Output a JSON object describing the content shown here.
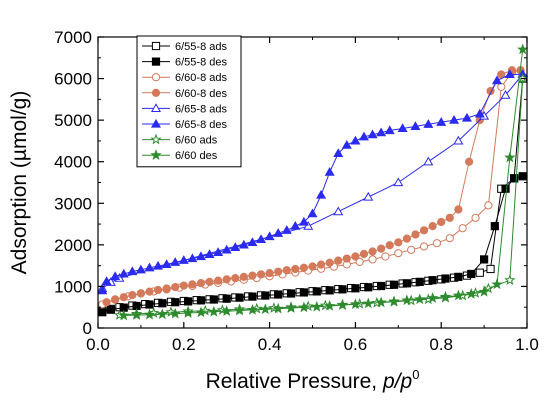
{
  "chart_data": {
    "type": "line",
    "xlabel": "Relative Pressure, p/p",
    "xlabel_superscript": "0",
    "ylabel": "Adsorption (µmol/g)",
    "xlim": [
      0.0,
      1.0
    ],
    "ylim": [
      0,
      7000
    ],
    "x_ticks": [
      "0.0",
      "0.2",
      "0.4",
      "0.6",
      "0.8",
      "1.0"
    ],
    "y_ticks": [
      "0",
      "1000",
      "2000",
      "3000",
      "4000",
      "5000",
      "6000",
      "7000"
    ],
    "grid": false,
    "legend_position": "top-left",
    "series": [
      {
        "name": "6/55-8 ads",
        "color": "#000000",
        "marker": "square",
        "filled": false,
        "points": [
          [
            0.01,
            410
          ],
          [
            0.03,
            460
          ],
          [
            0.05,
            500
          ],
          [
            0.08,
            540
          ],
          [
            0.11,
            575
          ],
          [
            0.14,
            605
          ],
          [
            0.17,
            630
          ],
          [
            0.2,
            650
          ],
          [
            0.23,
            670
          ],
          [
            0.26,
            690
          ],
          [
            0.29,
            715
          ],
          [
            0.32,
            735
          ],
          [
            0.35,
            760
          ],
          [
            0.38,
            785
          ],
          [
            0.41,
            810
          ],
          [
            0.44,
            835
          ],
          [
            0.47,
            860
          ],
          [
            0.5,
            885
          ],
          [
            0.53,
            910
          ],
          [
            0.56,
            935
          ],
          [
            0.59,
            960
          ],
          [
            0.62,
            985
          ],
          [
            0.65,
            1010
          ],
          [
            0.68,
            1040
          ],
          [
            0.71,
            1070
          ],
          [
            0.74,
            1100
          ],
          [
            0.77,
            1135
          ],
          [
            0.8,
            1170
          ],
          [
            0.83,
            1210
          ],
          [
            0.86,
            1260
          ],
          [
            0.89,
            1330
          ],
          [
            0.915,
            1420
          ],
          [
            0.94,
            3350
          ],
          [
            0.97,
            3600
          ],
          [
            0.99,
            6000
          ]
        ]
      },
      {
        "name": "6/55-8 des",
        "color": "#000000",
        "marker": "square",
        "filled": true,
        "points": [
          [
            0.99,
            3650
          ],
          [
            0.97,
            3600
          ],
          [
            0.95,
            3350
          ],
          [
            0.925,
            2450
          ],
          [
            0.9,
            1650
          ],
          [
            0.87,
            1300
          ],
          [
            0.84,
            1230
          ],
          [
            0.81,
            1190
          ],
          [
            0.78,
            1150
          ],
          [
            0.75,
            1110
          ],
          [
            0.72,
            1075
          ],
          [
            0.69,
            1040
          ],
          [
            0.66,
            1010
          ],
          [
            0.63,
            980
          ],
          [
            0.6,
            955
          ],
          [
            0.57,
            930
          ],
          [
            0.54,
            905
          ],
          [
            0.51,
            880
          ],
          [
            0.48,
            855
          ],
          [
            0.45,
            830
          ],
          [
            0.42,
            805
          ],
          [
            0.39,
            780
          ],
          [
            0.36,
            755
          ],
          [
            0.33,
            730
          ],
          [
            0.3,
            705
          ],
          [
            0.27,
            685
          ],
          [
            0.24,
            665
          ],
          [
            0.21,
            640
          ],
          [
            0.18,
            620
          ],
          [
            0.15,
            595
          ],
          [
            0.12,
            565
          ],
          [
            0.09,
            530
          ],
          [
            0.06,
            490
          ],
          [
            0.03,
            440
          ],
          [
            0.01,
            380
          ]
        ]
      },
      {
        "name": "6/60-8 ads",
        "color": "#d4795a",
        "marker": "circle",
        "filled": false,
        "points": [
          [
            0.01,
            570
          ],
          [
            0.04,
            680
          ],
          [
            0.07,
            760
          ],
          [
            0.1,
            830
          ],
          [
            0.13,
            880
          ],
          [
            0.16,
            930
          ],
          [
            0.19,
            970
          ],
          [
            0.22,
            1010
          ],
          [
            0.25,
            1045
          ],
          [
            0.28,
            1085
          ],
          [
            0.31,
            1120
          ],
          [
            0.34,
            1160
          ],
          [
            0.37,
            1200
          ],
          [
            0.4,
            1245
          ],
          [
            0.43,
            1290
          ],
          [
            0.46,
            1335
          ],
          [
            0.49,
            1380
          ],
          [
            0.52,
            1425
          ],
          [
            0.55,
            1475
          ],
          [
            0.58,
            1530
          ],
          [
            0.61,
            1590
          ],
          [
            0.64,
            1650
          ],
          [
            0.67,
            1720
          ],
          [
            0.7,
            1800
          ],
          [
            0.73,
            1880
          ],
          [
            0.76,
            1960
          ],
          [
            0.79,
            2040
          ],
          [
            0.82,
            2160
          ],
          [
            0.85,
            2400
          ],
          [
            0.88,
            2650
          ],
          [
            0.91,
            2950
          ],
          [
            0.94,
            5800
          ],
          [
            0.965,
            6150
          ],
          [
            0.985,
            6200
          ]
        ]
      },
      {
        "name": "6/60-8 des",
        "color": "#d4795a",
        "marker": "circle",
        "filled": true,
        "points": [
          [
            0.985,
            6200
          ],
          [
            0.965,
            6200
          ],
          [
            0.94,
            6100
          ],
          [
            0.915,
            5700
          ],
          [
            0.89,
            5000
          ],
          [
            0.865,
            4000
          ],
          [
            0.84,
            2850
          ],
          [
            0.82,
            2650
          ],
          [
            0.8,
            2550
          ],
          [
            0.78,
            2450
          ],
          [
            0.76,
            2350
          ],
          [
            0.74,
            2250
          ],
          [
            0.72,
            2150
          ],
          [
            0.7,
            2060
          ],
          [
            0.68,
            1990
          ],
          [
            0.66,
            1910
          ],
          [
            0.64,
            1840
          ],
          [
            0.62,
            1780
          ],
          [
            0.6,
            1720
          ],
          [
            0.58,
            1670
          ],
          [
            0.56,
            1620
          ],
          [
            0.54,
            1570
          ],
          [
            0.52,
            1525
          ],
          [
            0.5,
            1480
          ],
          [
            0.48,
            1450
          ],
          [
            0.46,
            1420
          ],
          [
            0.44,
            1390
          ],
          [
            0.42,
            1355
          ],
          [
            0.4,
            1320
          ],
          [
            0.38,
            1290
          ],
          [
            0.36,
            1260
          ],
          [
            0.34,
            1230
          ],
          [
            0.32,
            1200
          ],
          [
            0.3,
            1170
          ],
          [
            0.28,
            1140
          ],
          [
            0.26,
            1110
          ],
          [
            0.24,
            1080
          ],
          [
            0.22,
            1050
          ],
          [
            0.2,
            1020
          ],
          [
            0.18,
            985
          ],
          [
            0.16,
            950
          ],
          [
            0.14,
            915
          ],
          [
            0.12,
            875
          ],
          [
            0.1,
            835
          ],
          [
            0.08,
            790
          ],
          [
            0.06,
            740
          ],
          [
            0.04,
            690
          ],
          [
            0.02,
            620
          ]
        ]
      },
      {
        "name": "6/65-8 ads",
        "color": "#2a2af0",
        "marker": "triangle",
        "filled": false,
        "points": [
          [
            0.01,
            950
          ],
          [
            0.03,
            1100
          ],
          [
            0.05,
            1200
          ],
          [
            0.49,
            2450
          ],
          [
            0.56,
            2800
          ],
          [
            0.63,
            3150
          ],
          [
            0.7,
            3500
          ],
          [
            0.77,
            4000
          ],
          [
            0.84,
            4500
          ],
          [
            0.9,
            5100
          ],
          [
            0.95,
            5600
          ],
          [
            0.99,
            6100
          ]
        ]
      },
      {
        "name": "6/65-8 des",
        "color": "#2a2af0",
        "marker": "triangle",
        "filled": true,
        "points": [
          [
            0.99,
            6100
          ],
          [
            0.96,
            6100
          ],
          [
            0.93,
            5950
          ],
          [
            0.89,
            5150
          ],
          [
            0.86,
            5050
          ],
          [
            0.83,
            5000
          ],
          [
            0.8,
            4950
          ],
          [
            0.77,
            4900
          ],
          [
            0.74,
            4850
          ],
          [
            0.71,
            4800
          ],
          [
            0.68,
            4750
          ],
          [
            0.66,
            4700
          ],
          [
            0.64,
            4650
          ],
          [
            0.62,
            4600
          ],
          [
            0.6,
            4500
          ],
          [
            0.58,
            4400
          ],
          [
            0.56,
            4200
          ],
          [
            0.54,
            3750
          ],
          [
            0.52,
            3200
          ],
          [
            0.5,
            2750
          ],
          [
            0.48,
            2550
          ],
          [
            0.46,
            2450
          ],
          [
            0.44,
            2350
          ],
          [
            0.42,
            2280
          ],
          [
            0.4,
            2200
          ],
          [
            0.38,
            2130
          ],
          [
            0.36,
            2060
          ],
          [
            0.34,
            2000
          ],
          [
            0.32,
            1940
          ],
          [
            0.3,
            1880
          ],
          [
            0.28,
            1820
          ],
          [
            0.26,
            1770
          ],
          [
            0.24,
            1720
          ],
          [
            0.22,
            1670
          ],
          [
            0.2,
            1630
          ],
          [
            0.18,
            1580
          ],
          [
            0.16,
            1530
          ],
          [
            0.14,
            1490
          ],
          [
            0.12,
            1450
          ],
          [
            0.1,
            1400
          ],
          [
            0.08,
            1360
          ],
          [
            0.06,
            1300
          ],
          [
            0.04,
            1240
          ],
          [
            0.02,
            1120
          ],
          [
            0.01,
            900
          ]
        ]
      },
      {
        "name": "6/60 ads",
        "color": "#2e8b2e",
        "marker": "star",
        "filled": false,
        "points": [
          [
            0.05,
            310
          ],
          [
            0.09,
            340
          ],
          [
            0.13,
            360
          ],
          [
            0.17,
            380
          ],
          [
            0.21,
            400
          ],
          [
            0.25,
            415
          ],
          [
            0.29,
            430
          ],
          [
            0.33,
            450
          ],
          [
            0.37,
            465
          ],
          [
            0.41,
            480
          ],
          [
            0.45,
            500
          ],
          [
            0.49,
            520
          ],
          [
            0.53,
            540
          ],
          [
            0.57,
            560
          ],
          [
            0.61,
            580
          ],
          [
            0.65,
            605
          ],
          [
            0.69,
            630
          ],
          [
            0.73,
            660
          ],
          [
            0.77,
            690
          ],
          [
            0.81,
            730
          ],
          [
            0.85,
            780
          ],
          [
            0.88,
            840
          ],
          [
            0.91,
            950
          ],
          [
            0.96,
            1150
          ],
          [
            0.99,
            6000
          ]
        ]
      },
      {
        "name": "6/60 des",
        "color": "#2e8b2e",
        "marker": "star",
        "filled": true,
        "points": [
          [
            0.99,
            6700
          ],
          [
            0.96,
            4100
          ],
          [
            0.93,
            1050
          ],
          [
            0.9,
            870
          ],
          [
            0.87,
            820
          ],
          [
            0.84,
            780
          ],
          [
            0.81,
            750
          ],
          [
            0.78,
            720
          ],
          [
            0.75,
            690
          ],
          [
            0.72,
            665
          ],
          [
            0.69,
            640
          ],
          [
            0.66,
            615
          ],
          [
            0.63,
            590
          ],
          [
            0.6,
            570
          ],
          [
            0.57,
            550
          ],
          [
            0.54,
            530
          ],
          [
            0.51,
            510
          ],
          [
            0.48,
            495
          ],
          [
            0.45,
            480
          ],
          [
            0.42,
            465
          ],
          [
            0.39,
            450
          ],
          [
            0.36,
            435
          ],
          [
            0.33,
            420
          ],
          [
            0.3,
            405
          ],
          [
            0.27,
            390
          ],
          [
            0.24,
            375
          ],
          [
            0.21,
            360
          ],
          [
            0.18,
            345
          ],
          [
            0.15,
            330
          ],
          [
            0.12,
            320
          ],
          [
            0.09,
            310
          ],
          [
            0.06,
            300
          ]
        ]
      }
    ]
  }
}
